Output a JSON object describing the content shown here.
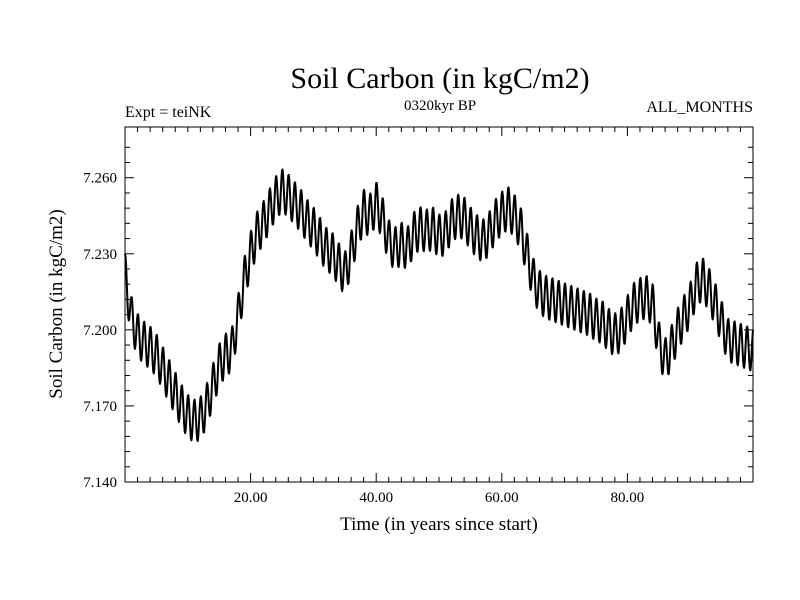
{
  "chart_data": {
    "type": "line",
    "title": "Soil Carbon (in kgC/m2)",
    "header_left": "Expt = teiNK",
    "header_center": "0320kyr BP",
    "header_right": "ALL_MONTHS",
    "xlabel": "Time (in years since start)",
    "ylabel": "Soil Carbon (in kgC/m2)",
    "xlim": [
      0,
      100
    ],
    "ylim": [
      7.14,
      7.28
    ],
    "x_ticks": [
      20,
      40,
      60,
      80
    ],
    "x_tick_labels": [
      "20.00",
      "40.00",
      "60.00",
      "80.00"
    ],
    "y_ticks": [
      7.14,
      7.17,
      7.2,
      7.23,
      7.26
    ],
    "y_tick_labels": [
      "7.140",
      "7.170",
      "7.200",
      "7.230",
      "7.260"
    ],
    "grid": false,
    "line_color": "#000000",
    "seasonal_amplitude": 0.0085,
    "series": [
      {
        "x": [
          0,
          1,
          2,
          3,
          4,
          5,
          6,
          7,
          8,
          9,
          10,
          11,
          12,
          13,
          14,
          15,
          16,
          17,
          18,
          19,
          20,
          21,
          22,
          23,
          24,
          25,
          26,
          27,
          28,
          29,
          30,
          31,
          32,
          33,
          34,
          35,
          36,
          37,
          38,
          39,
          40,
          41,
          42,
          43,
          44,
          45,
          46,
          47,
          48,
          49,
          50,
          51,
          52,
          53,
          54,
          55,
          56,
          57,
          58,
          59,
          60,
          61,
          62,
          63,
          64,
          65,
          66,
          67,
          68,
          69,
          70,
          71,
          72,
          73,
          74,
          75,
          76,
          77,
          78,
          79,
          80,
          81,
          82,
          83,
          84,
          85,
          86,
          87,
          88,
          89,
          90,
          91,
          92,
          93,
          94,
          95,
          96,
          97,
          98,
          99,
          100
        ],
        "y": [
          7.222,
          7.205,
          7.198,
          7.195,
          7.193,
          7.19,
          7.185,
          7.18,
          7.175,
          7.17,
          7.166,
          7.164,
          7.165,
          7.17,
          7.178,
          7.186,
          7.19,
          7.192,
          7.205,
          7.22,
          7.23,
          7.238,
          7.242,
          7.247,
          7.252,
          7.255,
          7.253,
          7.25,
          7.247,
          7.243,
          7.24,
          7.236,
          7.232,
          7.23,
          7.226,
          7.222,
          7.23,
          7.24,
          7.247,
          7.245,
          7.25,
          7.244,
          7.235,
          7.232,
          7.234,
          7.232,
          7.238,
          7.24,
          7.239,
          7.24,
          7.237,
          7.238,
          7.243,
          7.245,
          7.244,
          7.24,
          7.237,
          7.235,
          7.238,
          7.243,
          7.246,
          7.248,
          7.245,
          7.24,
          7.23,
          7.22,
          7.215,
          7.213,
          7.212,
          7.211,
          7.21,
          7.209,
          7.208,
          7.207,
          7.206,
          7.204,
          7.203,
          7.2,
          7.198,
          7.2,
          7.205,
          7.21,
          7.212,
          7.213,
          7.21,
          7.195,
          7.188,
          7.193,
          7.2,
          7.205,
          7.21,
          7.218,
          7.22,
          7.216,
          7.21,
          7.203,
          7.196,
          7.195,
          7.194,
          7.193,
          7.192
        ]
      }
    ]
  }
}
